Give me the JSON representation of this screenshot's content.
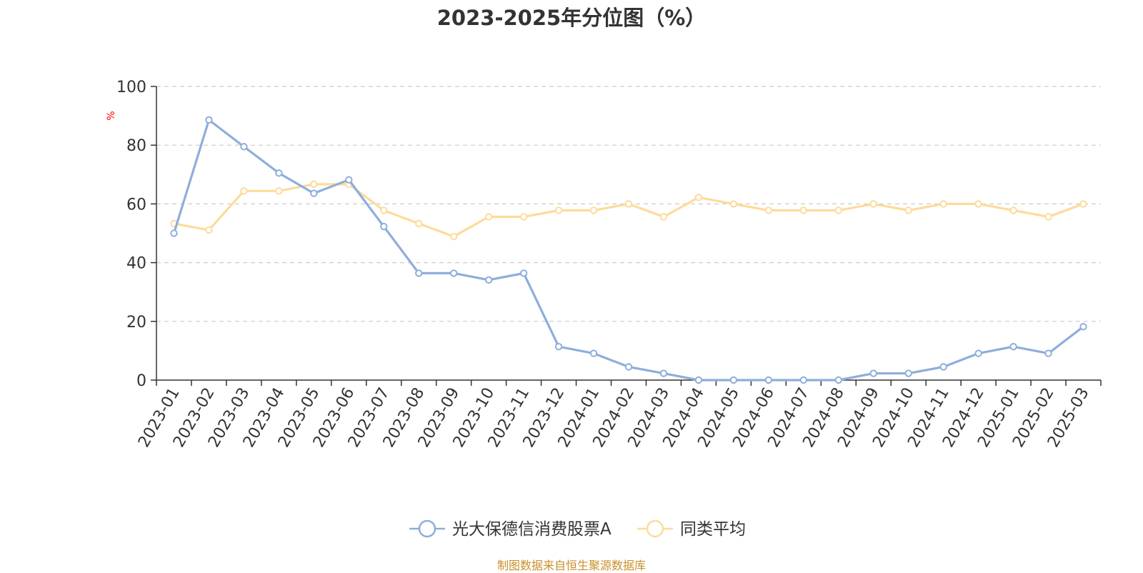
{
  "chart_data": {
    "type": "line",
    "title": "2023-2025年分位图（%）",
    "ylabel": "%",
    "xlabel": "",
    "ylim": [
      0,
      100
    ],
    "yticks": [
      0,
      20,
      40,
      60,
      80,
      100
    ],
    "grid": true,
    "legend_position": "bottom-center",
    "categories": [
      "2023-01",
      "2023-02",
      "2023-03",
      "2023-04",
      "2023-05",
      "2023-06",
      "2023-07",
      "2023-08",
      "2023-09",
      "2023-10",
      "2023-11",
      "2023-12",
      "2024-01",
      "2024-02",
      "2024-03",
      "2024-04",
      "2024-05",
      "2024-06",
      "2024-07",
      "2024-08",
      "2024-09",
      "2024-10",
      "2024-11",
      "2024-12",
      "2025-01",
      "2025-02",
      "2025-03"
    ],
    "series": [
      {
        "name": "光大保德信消费股票A",
        "color": "#8eaedb",
        "values": [
          50.0,
          88.6,
          79.5,
          70.5,
          63.6,
          68.2,
          52.3,
          36.4,
          36.4,
          34.1,
          36.4,
          11.4,
          9.1,
          4.5,
          2.3,
          0.0,
          0.0,
          0.0,
          0.0,
          0.0,
          2.3,
          2.3,
          4.5,
          9.1,
          11.4,
          9.1,
          18.2
        ]
      },
      {
        "name": "同类平均",
        "color": "#fddb9a",
        "values": [
          53.3,
          51.1,
          64.4,
          64.4,
          66.7,
          66.7,
          57.8,
          53.3,
          48.9,
          55.6,
          55.6,
          57.8,
          57.8,
          60.0,
          55.6,
          62.2,
          60.0,
          57.8,
          57.8,
          57.8,
          60.0,
          57.8,
          60.0,
          60.0,
          57.8,
          55.6,
          60.0
        ]
      }
    ]
  },
  "source": "制图数据来自恒生聚源数据库"
}
